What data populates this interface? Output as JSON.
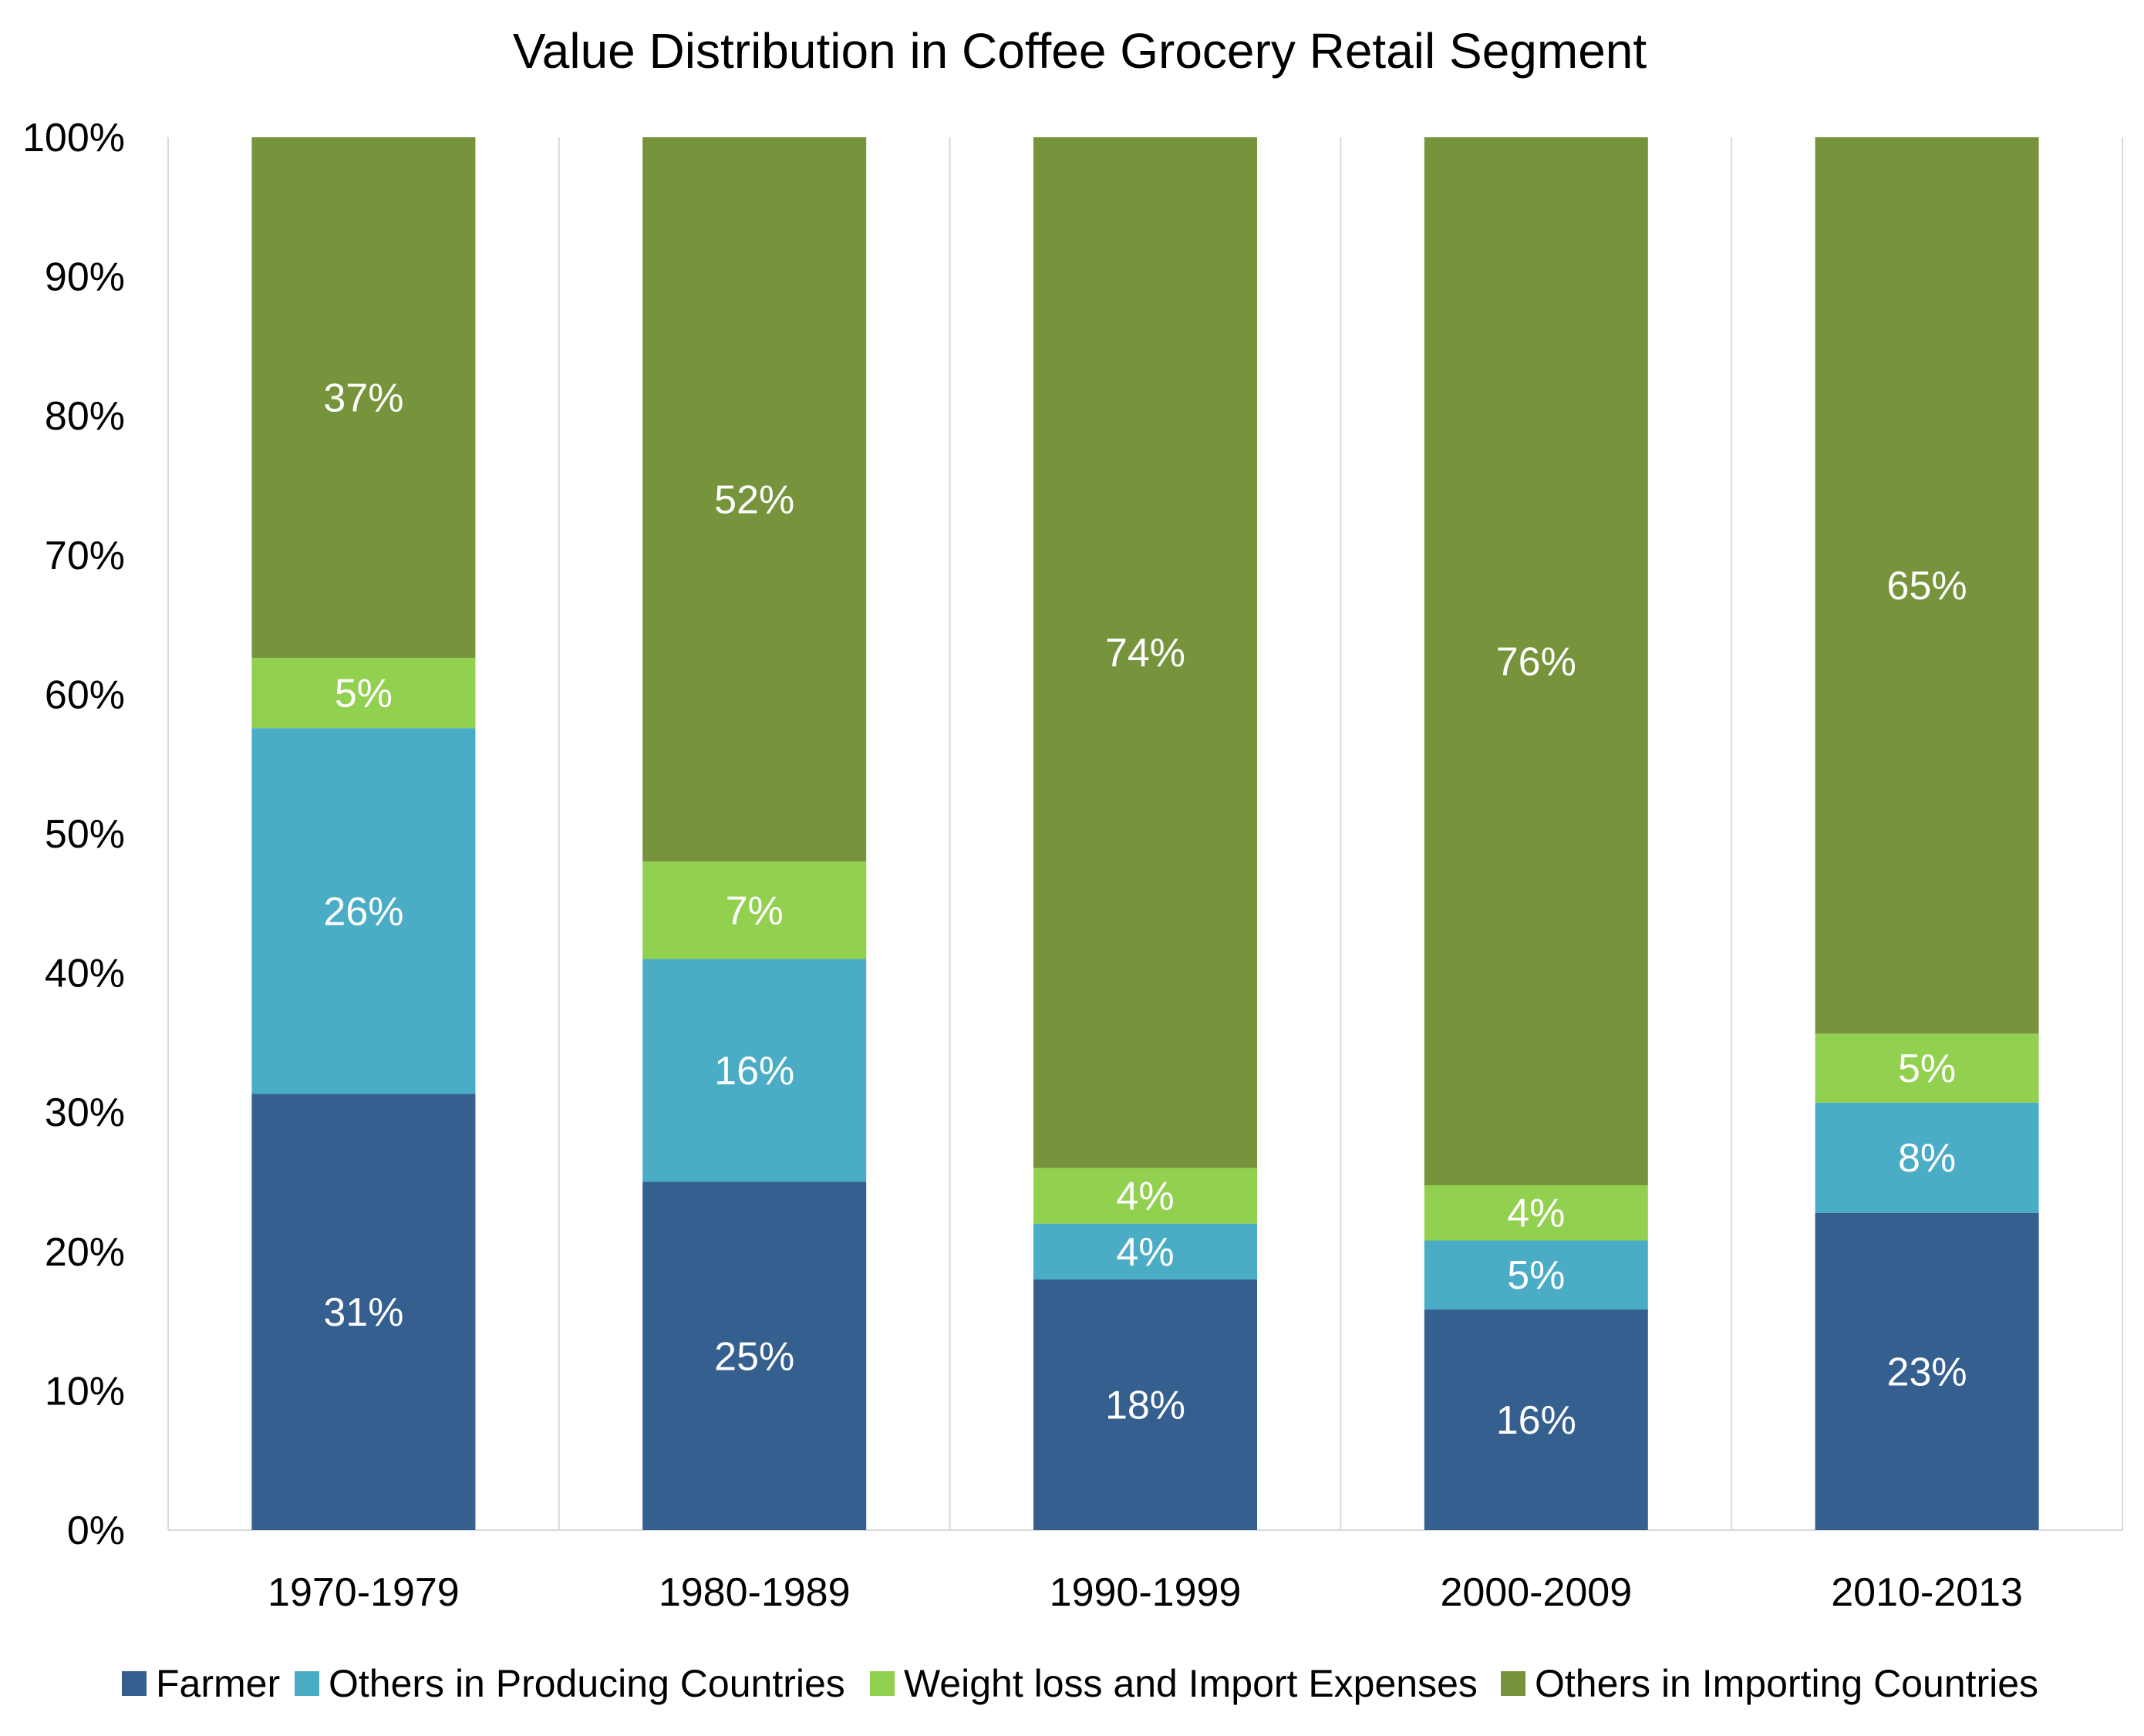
{
  "chart_data": {
    "type": "bar",
    "stacked": true,
    "title": "Value Distribution in Coffee Grocery Retail Segment",
    "categories": [
      "1970-1979",
      "1980-1989",
      "1990-1999",
      "2000-2009",
      "2010-2013"
    ],
    "series": [
      {
        "name": "Farmer",
        "color": "#355F8F",
        "values": [
          31,
          25,
          18,
          16,
          23
        ],
        "labels": [
          "31%",
          "25%",
          "18%",
          "16%",
          "23%"
        ]
      },
      {
        "name": "Others in Producing Countries",
        "color": "#4BACC6",
        "values": [
          26,
          16,
          4,
          5,
          8
        ],
        "labels": [
          "26%",
          "16%",
          "4%",
          "5%",
          "8%"
        ]
      },
      {
        "name": "Weight loss and Import Expenses",
        "color": "#92D050",
        "values": [
          5,
          7,
          4,
          4,
          5
        ],
        "labels": [
          "5%",
          "7%",
          "4%",
          "4%",
          "5%"
        ]
      },
      {
        "name": "Others in Importing Countries",
        "color": "#77933C",
        "values": [
          37,
          52,
          74,
          76,
          65
        ],
        "labels": [
          "37%",
          "52%",
          "74%",
          "76%",
          "65%"
        ]
      }
    ],
    "yaxis": {
      "ticks": [
        "0%",
        "10%",
        "20%",
        "30%",
        "40%",
        "50%",
        "60%",
        "70%",
        "80%",
        "90%",
        "100%"
      ],
      "ylim": [
        0,
        100
      ]
    },
    "xlabel": "",
    "ylabel": "",
    "grid": "vertical",
    "legend_position": "bottom"
  }
}
